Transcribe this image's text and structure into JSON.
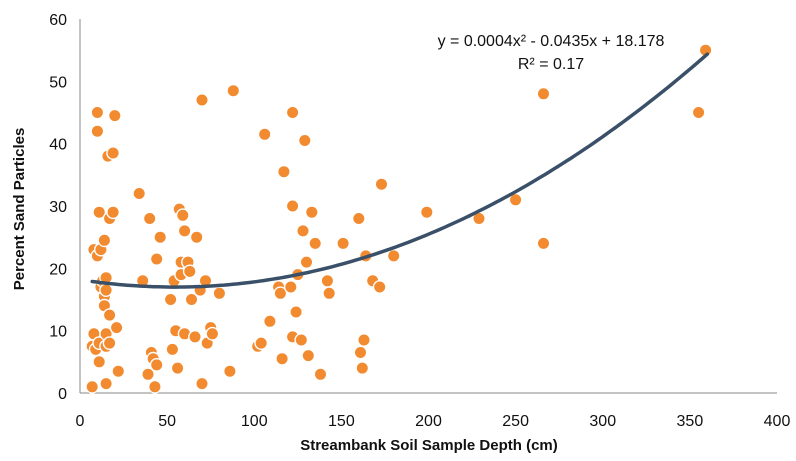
{
  "chart_data": {
    "type": "scatter",
    "xlabel": "Streambank Soil Sample Depth (cm)",
    "ylabel": "Percent Sand Particles",
    "xlim": [
      0,
      400
    ],
    "ylim": [
      0,
      60
    ],
    "x_ticks": [
      "0",
      "50",
      "100",
      "150",
      "200",
      "250",
      "300",
      "350",
      "400"
    ],
    "y_ticks": [
      "0",
      "10",
      "20",
      "30",
      "40",
      "50",
      "60"
    ],
    "grid": false,
    "point_color": "#F28A30",
    "trendline_color": "#3A5068",
    "trendline": {
      "type": "polynomial",
      "a": 0.0004,
      "b": -0.0435,
      "c": 18.178,
      "x_range": [
        7,
        360
      ],
      "equation_label": "y = 0.0004x² - 0.0435x + 18.178",
      "r2_label": "R² = 0.17"
    },
    "points": [
      [
        7,
        1
      ],
      [
        7,
        7.5
      ],
      [
        8,
        23
      ],
      [
        8,
        9.5
      ],
      [
        9,
        7
      ],
      [
        10,
        45
      ],
      [
        10,
        42
      ],
      [
        10,
        22
      ],
      [
        11,
        29
      ],
      [
        11,
        8
      ],
      [
        11,
        5
      ],
      [
        12,
        23
      ],
      [
        12,
        17
      ],
      [
        13,
        18
      ],
      [
        14,
        24.5
      ],
      [
        14,
        15.5
      ],
      [
        14,
        14
      ],
      [
        15,
        18.5
      ],
      [
        15,
        16.5
      ],
      [
        15,
        1.5
      ],
      [
        15,
        9.5
      ],
      [
        15,
        7.5
      ],
      [
        16,
        38
      ],
      [
        17,
        28
      ],
      [
        17,
        12.5
      ],
      [
        17,
        8
      ],
      [
        19,
        29
      ],
      [
        19,
        38.5
      ],
      [
        20,
        44.5
      ],
      [
        21,
        10.5
      ],
      [
        22,
        3.5
      ],
      [
        34,
        32
      ],
      [
        36,
        18
      ],
      [
        39,
        3
      ],
      [
        40,
        28
      ],
      [
        41,
        6.5
      ],
      [
        42,
        5.5
      ],
      [
        43,
        1
      ],
      [
        44,
        4.5
      ],
      [
        44,
        21.5
      ],
      [
        46,
        25
      ],
      [
        52,
        15
      ],
      [
        53,
        7
      ],
      [
        54,
        18
      ],
      [
        55,
        10
      ],
      [
        56,
        4
      ],
      [
        57,
        29.5
      ],
      [
        58,
        19
      ],
      [
        58,
        21
      ],
      [
        59,
        28.5
      ],
      [
        60,
        9.5
      ],
      [
        60,
        26
      ],
      [
        62,
        21
      ],
      [
        63,
        19.5
      ],
      [
        64,
        15
      ],
      [
        66,
        9
      ],
      [
        67,
        25
      ],
      [
        69,
        16.5
      ],
      [
        70,
        47
      ],
      [
        70,
        1.5
      ],
      [
        72,
        18
      ],
      [
        73,
        8
      ],
      [
        75,
        10.5
      ],
      [
        76,
        9.5
      ],
      [
        80,
        16
      ],
      [
        86,
        3.5
      ],
      [
        88,
        48.5
      ],
      [
        102,
        7.5
      ],
      [
        104,
        8
      ],
      [
        106,
        41.5
      ],
      [
        109,
        11.5
      ],
      [
        114,
        17
      ],
      [
        115,
        16
      ],
      [
        116,
        5.5
      ],
      [
        117,
        35.5
      ],
      [
        121,
        17
      ],
      [
        122,
        45
      ],
      [
        122,
        30
      ],
      [
        122,
        9
      ],
      [
        124,
        13
      ],
      [
        125,
        19
      ],
      [
        127,
        8.5
      ],
      [
        128,
        26
      ],
      [
        129,
        40.5
      ],
      [
        130,
        21
      ],
      [
        131,
        6
      ],
      [
        133,
        29
      ],
      [
        135,
        24
      ],
      [
        138,
        3
      ],
      [
        142,
        18
      ],
      [
        143,
        16
      ],
      [
        151,
        24
      ],
      [
        160,
        28
      ],
      [
        161,
        6.5
      ],
      [
        162,
        4
      ],
      [
        163,
        8.5
      ],
      [
        164,
        22
      ],
      [
        168,
        18
      ],
      [
        172,
        17
      ],
      [
        173,
        33.5
      ],
      [
        180,
        22
      ],
      [
        199,
        29
      ],
      [
        229,
        28
      ],
      [
        250,
        31
      ],
      [
        266,
        48
      ],
      [
        266,
        24
      ],
      [
        355,
        45
      ],
      [
        359,
        55
      ]
    ]
  }
}
